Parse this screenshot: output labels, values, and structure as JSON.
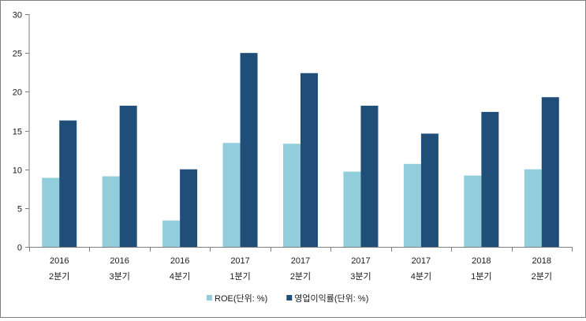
{
  "chart_data": {
    "type": "bar",
    "title": "",
    "xlabel": "",
    "ylabel": "",
    "ylim": [
      0,
      30
    ],
    "yticks": [
      0,
      5,
      10,
      15,
      20,
      25,
      30
    ],
    "grid": false,
    "legend_position": "bottom",
    "categories": [
      [
        "2016",
        "2분기"
      ],
      [
        "2016",
        "3분기"
      ],
      [
        "2016",
        "4분기"
      ],
      [
        "2017",
        "1분기"
      ],
      [
        "2017",
        "2분기"
      ],
      [
        "2017",
        "3분기"
      ],
      [
        "2017",
        "4분기"
      ],
      [
        "2018",
        "1분기"
      ],
      [
        "2018",
        "2분기"
      ]
    ],
    "series": [
      {
        "name": "ROE(단위: %)",
        "color": "#92cddc",
        "values": [
          8.9,
          9.1,
          3.4,
          13.4,
          13.3,
          9.7,
          10.7,
          9.2,
          10.0
        ]
      },
      {
        "name": "영업이익률(단위: %)",
        "color": "#1f4e79",
        "values": [
          16.3,
          18.2,
          10.0,
          25.0,
          22.4,
          18.2,
          14.6,
          17.4,
          19.3
        ]
      }
    ]
  }
}
